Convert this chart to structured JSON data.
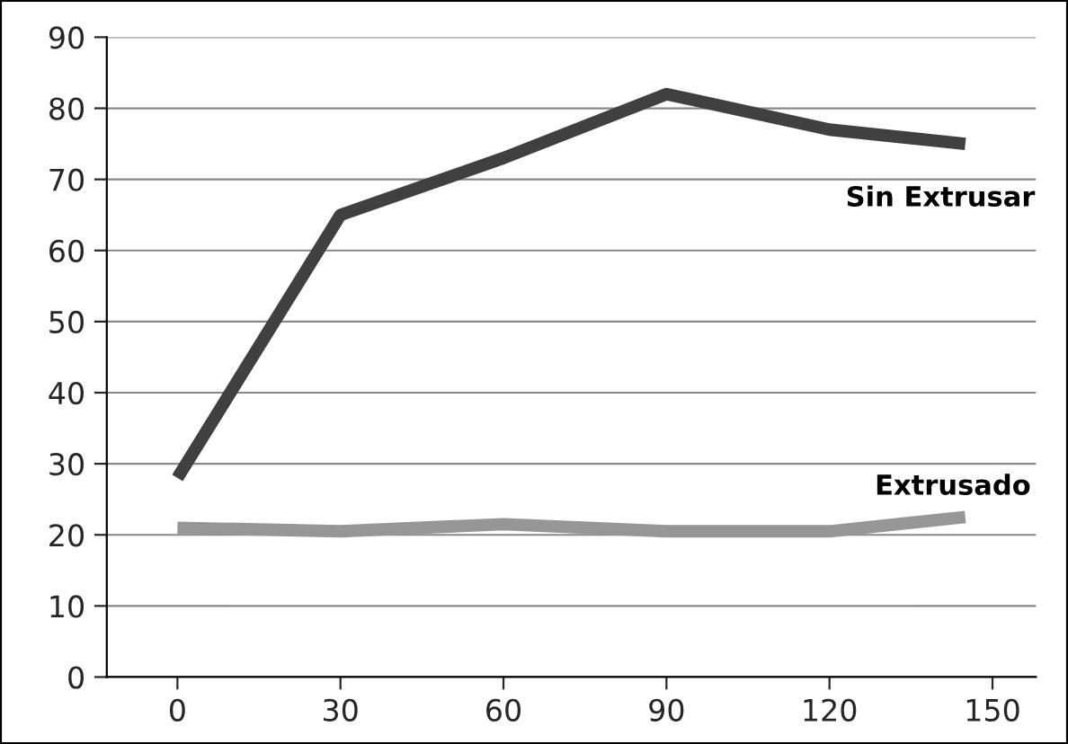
{
  "chart_data": {
    "type": "line",
    "x": [
      0,
      30,
      60,
      90,
      120,
      145
    ],
    "series": [
      {
        "name": "Sin Extrusar",
        "color": "#404040",
        "values": [
          28,
          65,
          73,
          82,
          77,
          75
        ]
      },
      {
        "name": "Extrusado",
        "color": "#969696",
        "values": [
          21,
          20.5,
          21.5,
          20.5,
          20.5,
          22.5
        ]
      }
    ],
    "xlim": [
      -13,
      158
    ],
    "xticks": [
      0,
      30,
      60,
      90,
      120,
      150
    ],
    "ylim": [
      0,
      90
    ],
    "yticks": [
      0,
      10,
      20,
      30,
      40,
      50,
      60,
      70,
      80,
      90
    ],
    "grid": "y",
    "legend": false,
    "marker": "none",
    "line_style": "solid"
  }
}
